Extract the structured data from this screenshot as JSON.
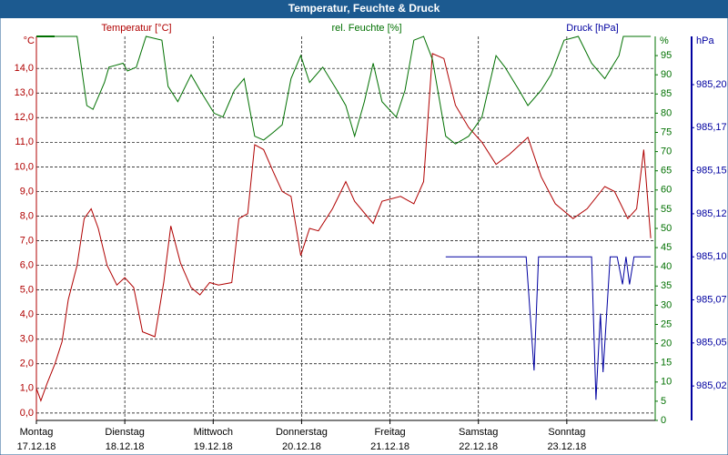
{
  "chart_data": {
    "type": "line",
    "title": "Temperatur, Feuchte & Druck",
    "xlim": [
      0,
      7
    ],
    "xticks": [
      {
        "value": 0,
        "label": "Montag",
        "date": "17.12.18"
      },
      {
        "value": 1,
        "label": "Dienstag",
        "date": "18.12.18"
      },
      {
        "value": 2,
        "label": "Mittwoch",
        "date": "19.12.18"
      },
      {
        "value": 3,
        "label": "Donnerstag",
        "date": "20.12.18"
      },
      {
        "value": 4,
        "label": "Freitag",
        "date": "21.12.18"
      },
      {
        "value": 5,
        "label": "Samstag",
        "date": "22.12.18"
      },
      {
        "value": 6,
        "label": "Sonntag",
        "date": "23.12.18"
      }
    ],
    "y_unit": "°C",
    "ylim": [
      -0.3,
      15.3
    ],
    "yticks": [
      {
        "value": 0,
        "label": "0,0"
      },
      {
        "value": 1,
        "label": "1,0"
      },
      {
        "value": 2,
        "label": "2,0"
      },
      {
        "value": 3,
        "label": "3,0"
      },
      {
        "value": 4,
        "label": "4,0"
      },
      {
        "value": 5,
        "label": "5,0"
      },
      {
        "value": 6,
        "label": "6,0"
      },
      {
        "value": 7,
        "label": "7,0"
      },
      {
        "value": 8,
        "label": "8,0"
      },
      {
        "value": 9,
        "label": "9,0"
      },
      {
        "value": 10,
        "label": "10,0"
      },
      {
        "value": 11,
        "label": "11,0"
      },
      {
        "value": 12,
        "label": "12,0"
      },
      {
        "value": 13,
        "label": "13,0"
      },
      {
        "value": 14,
        "label": "14,0"
      }
    ],
    "y2_unit": "%",
    "y2lim": [
      0,
      100
    ],
    "y2ticks": [
      0,
      5,
      10,
      15,
      20,
      25,
      30,
      35,
      40,
      45,
      50,
      55,
      60,
      65,
      70,
      75,
      80,
      85,
      90,
      95
    ],
    "y3_unit": "hPa",
    "y3lim": [
      985.005,
      985.228
    ],
    "y3ticks": [
      {
        "value": 985.025,
        "label": "985,02"
      },
      {
        "value": 985.05,
        "label": "985,05"
      },
      {
        "value": 985.075,
        "label": "985,07"
      },
      {
        "value": 985.1,
        "label": "985,10"
      },
      {
        "value": 985.125,
        "label": "985,12"
      },
      {
        "value": 985.15,
        "label": "985,15"
      },
      {
        "value": 985.175,
        "label": "985,17"
      },
      {
        "value": 985.2,
        "label": "985,20"
      }
    ],
    "grid": true,
    "series": [
      {
        "name": "Temperatur [°C]",
        "color": "#b00000",
        "axis": "y",
        "x": [
          0,
          0.05,
          0.12,
          0.21,
          0.29,
          0.36,
          0.46,
          0.54,
          0.62,
          0.7,
          0.8,
          0.91,
          1.0,
          1.1,
          1.2,
          1.34,
          1.44,
          1.52,
          1.63,
          1.75,
          1.85,
          1.96,
          2.06,
          2.21,
          2.29,
          2.39,
          2.47,
          2.57,
          2.68,
          2.78,
          2.88,
          2.99,
          3.09,
          3.19,
          3.35,
          3.5,
          3.6,
          3.81,
          3.91,
          4.12,
          4.27,
          4.38,
          4.48,
          4.61,
          4.74,
          4.89,
          5.04,
          5.2,
          5.35,
          5.56,
          5.71,
          5.87,
          6.07,
          6.23,
          6.43,
          6.54,
          6.69,
          6.79,
          6.87,
          6.95
        ],
        "values": [
          1.0,
          0.5,
          1.2,
          2.0,
          2.9,
          4.6,
          6.0,
          7.9,
          8.3,
          7.5,
          6.0,
          5.2,
          5.5,
          5.1,
          3.3,
          3.1,
          5.3,
          7.6,
          6.1,
          5.1,
          4.8,
          5.3,
          5.2,
          5.3,
          7.9,
          8.1,
          10.9,
          10.7,
          9.8,
          9.0,
          8.8,
          6.4,
          7.5,
          7.4,
          8.3,
          9.4,
          8.6,
          7.7,
          8.6,
          8.8,
          8.5,
          9.4,
          14.6,
          14.4,
          12.5,
          11.6,
          11.0,
          10.1,
          10.5,
          11.2,
          9.6,
          8.5,
          7.9,
          8.3,
          9.2,
          9.0,
          7.9,
          8.3,
          10.7,
          7.1
        ]
      },
      {
        "name": "rel. Feuchte [%]",
        "color": "#007000",
        "axis": "y2",
        "x": [
          0,
          0.46,
          0.57,
          0.64,
          0.77,
          0.82,
          0.98,
          1.03,
          1.13,
          1.24,
          1.42,
          1.49,
          1.6,
          1.75,
          1.85,
          2.01,
          2.11,
          2.24,
          2.35,
          2.47,
          2.57,
          2.68,
          2.78,
          2.88,
          2.99,
          3.09,
          3.24,
          3.4,
          3.5,
          3.6,
          3.71,
          3.81,
          3.91,
          4.07,
          4.17,
          4.27,
          4.38,
          4.48,
          4.63,
          4.74,
          4.89,
          5.04,
          5.2,
          5.3,
          5.46,
          5.56,
          5.71,
          5.82,
          5.97,
          6.13,
          6.28,
          6.43,
          6.59,
          6.64,
          6.95
        ],
        "values": [
          100,
          100,
          82,
          81,
          88,
          92,
          93,
          91,
          92,
          100,
          99,
          87,
          83,
          90,
          86,
          80,
          79,
          86,
          89,
          74,
          73,
          75,
          77,
          89,
          95,
          88,
          92,
          86,
          82,
          74,
          83,
          93,
          83,
          79,
          86,
          99,
          100,
          94,
          74,
          72,
          74,
          79,
          95,
          92,
          86,
          82,
          86,
          90,
          99,
          100,
          93,
          89,
          95,
          100,
          100
        ]
      },
      {
        "name": "Druck [hPa]",
        "color": "#0000a0",
        "axis": "y3",
        "x": [
          4.63,
          5.54,
          5.63,
          5.68,
          6.28,
          6.33,
          6.38,
          6.41,
          6.49,
          6.57,
          6.63,
          6.67,
          6.71,
          6.76,
          6.95
        ],
        "values": [
          985.1,
          985.1,
          985.034,
          985.1,
          985.1,
          985.017,
          985.067,
          985.033,
          985.1,
          985.1,
          985.084,
          985.1,
          985.084,
          985.1,
          985.1
        ]
      }
    ]
  }
}
